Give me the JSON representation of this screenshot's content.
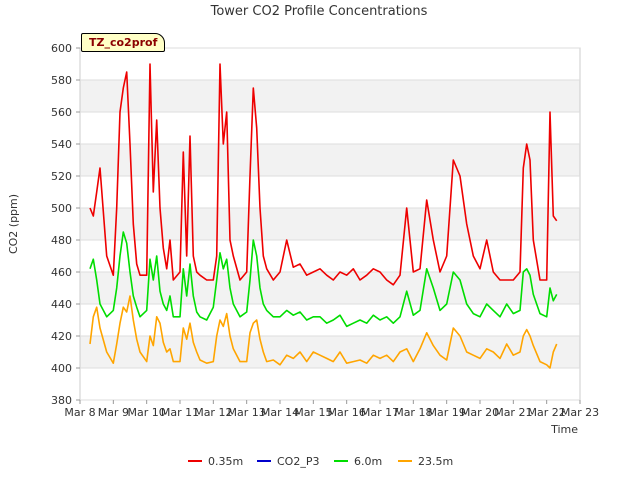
{
  "chart_data": {
    "type": "line",
    "title": "Tower CO2 Profile Concentrations",
    "xlabel": "Time",
    "ylabel": "CO2 (ppm)",
    "site_tag": "TZ_co2prof",
    "ylim": [
      380,
      600
    ],
    "yticks": [
      380,
      400,
      420,
      440,
      460,
      480,
      500,
      520,
      540,
      560,
      580,
      600
    ],
    "xlim": [
      8,
      23
    ],
    "xticks": [
      {
        "x": 8,
        "label": "Mar 8"
      },
      {
        "x": 9,
        "label": "Mar 9"
      },
      {
        "x": 10,
        "label": "Mar 10"
      },
      {
        "x": 11,
        "label": "Mar 11"
      },
      {
        "x": 12,
        "label": "Mar 12"
      },
      {
        "x": 13,
        "label": "Mar 13"
      },
      {
        "x": 14,
        "label": "Mar 14"
      },
      {
        "x": 15,
        "label": "Mar 15"
      },
      {
        "x": 16,
        "label": "Mar 16"
      },
      {
        "x": 17,
        "label": "Mar 17"
      },
      {
        "x": 18,
        "label": "Mar 18"
      },
      {
        "x": 19,
        "label": "Mar 19"
      },
      {
        "x": 20,
        "label": "Mar 20"
      },
      {
        "x": 21,
        "label": "Mar 21"
      },
      {
        "x": 22,
        "label": "Mar 22"
      },
      {
        "x": 23,
        "label": "Mar 23"
      }
    ],
    "x_unit": "day of March (fractional)",
    "series": [
      {
        "name": "0.35m",
        "color": "#ee0000",
        "x": [
          8.3,
          8.4,
          8.5,
          8.6,
          8.8,
          9.0,
          9.1,
          9.2,
          9.3,
          9.4,
          9.5,
          9.6,
          9.7,
          9.8,
          10.0,
          10.1,
          10.2,
          10.3,
          10.4,
          10.5,
          10.6,
          10.7,
          10.8,
          11.0,
          11.1,
          11.2,
          11.3,
          11.4,
          11.5,
          11.6,
          11.8,
          12.0,
          12.1,
          12.2,
          12.3,
          12.4,
          12.5,
          12.6,
          12.8,
          13.0,
          13.1,
          13.2,
          13.3,
          13.4,
          13.5,
          13.6,
          13.8,
          14.0,
          14.2,
          14.4,
          14.6,
          14.8,
          15.0,
          15.2,
          15.4,
          15.6,
          15.8,
          16.0,
          16.2,
          16.4,
          16.6,
          16.8,
          17.0,
          17.2,
          17.4,
          17.6,
          17.8,
          18.0,
          18.2,
          18.4,
          18.6,
          18.8,
          19.0,
          19.2,
          19.4,
          19.6,
          19.8,
          20.0,
          20.2,
          20.4,
          20.6,
          20.8,
          21.0,
          21.2,
          21.3,
          21.4,
          21.5,
          21.6,
          21.8,
          22.0,
          22.1,
          22.2,
          22.3
        ],
        "y": [
          500,
          495,
          510,
          525,
          470,
          458,
          500,
          560,
          575,
          585,
          540,
          490,
          465,
          458,
          458,
          590,
          510,
          555,
          500,
          475,
          462,
          480,
          455,
          460,
          535,
          470,
          545,
          470,
          460,
          458,
          455,
          455,
          470,
          590,
          540,
          560,
          480,
          470,
          455,
          460,
          520,
          575,
          550,
          500,
          470,
          462,
          455,
          460,
          480,
          463,
          465,
          458,
          460,
          462,
          458,
          455,
          460,
          458,
          462,
          455,
          458,
          462,
          460,
          455,
          452,
          458,
          500,
          460,
          462,
          505,
          480,
          460,
          470,
          530,
          520,
          490,
          470,
          462,
          480,
          460,
          455,
          455,
          455,
          460,
          525,
          540,
          530,
          480,
          455,
          455,
          560,
          495,
          492
        ]
      },
      {
        "name": "CO2_P3",
        "color": "#0000cc",
        "x": [],
        "y": []
      },
      {
        "name": "6.0m",
        "color": "#00dd00",
        "x": [
          8.3,
          8.4,
          8.5,
          8.6,
          8.8,
          9.0,
          9.1,
          9.2,
          9.3,
          9.4,
          9.5,
          9.6,
          9.7,
          9.8,
          10.0,
          10.1,
          10.2,
          10.3,
          10.4,
          10.5,
          10.6,
          10.7,
          10.8,
          11.0,
          11.1,
          11.2,
          11.3,
          11.4,
          11.5,
          11.6,
          11.8,
          12.0,
          12.1,
          12.2,
          12.3,
          12.4,
          12.5,
          12.6,
          12.8,
          13.0,
          13.1,
          13.2,
          13.3,
          13.4,
          13.5,
          13.6,
          13.8,
          14.0,
          14.2,
          14.4,
          14.6,
          14.8,
          15.0,
          15.2,
          15.4,
          15.6,
          15.8,
          16.0,
          16.2,
          16.4,
          16.6,
          16.8,
          17.0,
          17.2,
          17.4,
          17.6,
          17.8,
          18.0,
          18.2,
          18.4,
          18.6,
          18.8,
          19.0,
          19.2,
          19.4,
          19.6,
          19.8,
          20.0,
          20.2,
          20.4,
          20.6,
          20.8,
          21.0,
          21.2,
          21.3,
          21.4,
          21.5,
          21.6,
          21.8,
          22.0,
          22.1,
          22.2,
          22.3
        ],
        "y": [
          462,
          468,
          455,
          440,
          432,
          436,
          450,
          470,
          485,
          478,
          460,
          445,
          438,
          432,
          436,
          468,
          455,
          470,
          448,
          440,
          436,
          445,
          432,
          432,
          462,
          445,
          465,
          445,
          435,
          432,
          430,
          438,
          455,
          472,
          462,
          468,
          450,
          440,
          432,
          435,
          455,
          480,
          470,
          450,
          440,
          436,
          432,
          432,
          436,
          433,
          435,
          430,
          432,
          432,
          428,
          430,
          433,
          426,
          428,
          430,
          428,
          433,
          430,
          432,
          428,
          432,
          448,
          433,
          436,
          462,
          450,
          436,
          440,
          460,
          455,
          440,
          434,
          432,
          440,
          436,
          432,
          440,
          434,
          436,
          460,
          462,
          458,
          446,
          434,
          432,
          450,
          442,
          446
        ]
      },
      {
        "name": "23.5m",
        "color": "#ffa500",
        "x": [
          8.3,
          8.4,
          8.5,
          8.6,
          8.8,
          9.0,
          9.1,
          9.2,
          9.3,
          9.4,
          9.5,
          9.6,
          9.7,
          9.8,
          10.0,
          10.1,
          10.2,
          10.3,
          10.4,
          10.5,
          10.6,
          10.7,
          10.8,
          11.0,
          11.1,
          11.2,
          11.3,
          11.4,
          11.5,
          11.6,
          11.8,
          12.0,
          12.1,
          12.2,
          12.3,
          12.4,
          12.5,
          12.6,
          12.8,
          13.0,
          13.1,
          13.2,
          13.3,
          13.4,
          13.5,
          13.6,
          13.8,
          14.0,
          14.2,
          14.4,
          14.6,
          14.8,
          15.0,
          15.2,
          15.4,
          15.6,
          15.8,
          16.0,
          16.2,
          16.4,
          16.6,
          16.8,
          17.0,
          17.2,
          17.4,
          17.6,
          17.8,
          18.0,
          18.2,
          18.4,
          18.6,
          18.8,
          19.0,
          19.2,
          19.4,
          19.6,
          19.8,
          20.0,
          20.2,
          20.4,
          20.6,
          20.8,
          21.0,
          21.2,
          21.3,
          21.4,
          21.5,
          21.6,
          21.8,
          22.0,
          22.1,
          22.2,
          22.3
        ],
        "y": [
          415,
          432,
          438,
          425,
          410,
          403,
          415,
          428,
          438,
          435,
          445,
          430,
          418,
          410,
          404,
          420,
          414,
          432,
          428,
          416,
          410,
          412,
          404,
          404,
          425,
          418,
          428,
          416,
          410,
          405,
          403,
          404,
          420,
          430,
          426,
          434,
          420,
          412,
          404,
          404,
          422,
          428,
          430,
          418,
          410,
          404,
          405,
          402,
          408,
          406,
          410,
          404,
          410,
          408,
          406,
          404,
          410,
          403,
          404,
          405,
          403,
          408,
          406,
          408,
          404,
          410,
          412,
          404,
          412,
          422,
          414,
          408,
          405,
          425,
          420,
          410,
          408,
          406,
          412,
          410,
          406,
          415,
          408,
          410,
          420,
          424,
          420,
          414,
          404,
          402,
          400,
          410,
          415
        ]
      }
    ],
    "legend_position": "bottom-center",
    "grid": true
  }
}
